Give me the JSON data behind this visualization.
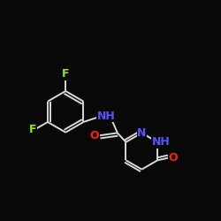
{
  "background": "#080808",
  "bond_color": "#d8d8d8",
  "atom_colors": {
    "F": "#90ee00",
    "N": "#5555ff",
    "O": "#ff2200",
    "NH": "#5555ff"
  },
  "bond_lw": 1.4,
  "font_size": 8.5
}
